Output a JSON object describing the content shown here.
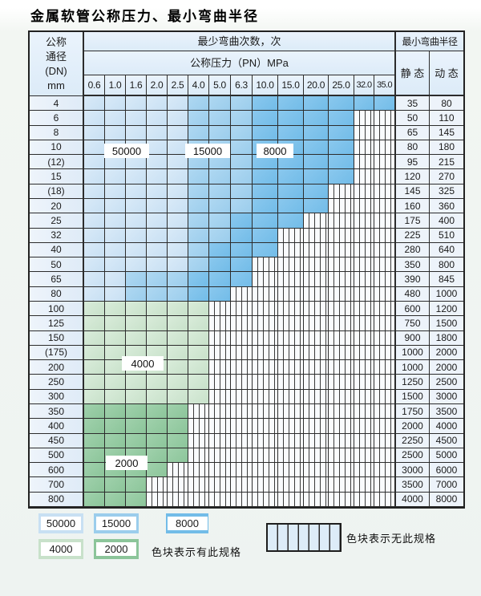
{
  "title": "金属软管公称压力、最小弯曲半径",
  "table": {
    "dn_header": [
      "公称",
      "通径",
      "(DN)",
      "mm"
    ],
    "bend_cycles_header": "最少弯曲次数，次",
    "pressure_header": "公称压力（PN）MPa",
    "radius_header": "最小弯曲半径",
    "static_header": "静 态",
    "dynamic_header": "动 态",
    "pressure_columns": [
      "0.6",
      "1.0",
      "1.6",
      "2.0",
      "2.5",
      "4.0",
      "5.0",
      "6.3",
      "10.0",
      "15.0",
      "20.0",
      "25.0",
      "32.0",
      "35.0"
    ],
    "cell_codes": {
      "A": "50000",
      "B": "15000",
      "C": "8000",
      "D": "4000",
      "E": "2000",
      "X": "无此规格"
    },
    "rows": [
      {
        "dn": "4",
        "cells": "AAAAABBBCCCCCC",
        "static": "35",
        "dynamic": "80"
      },
      {
        "dn": "6",
        "cells": "AAAAABBBCCCCXX",
        "static": "50",
        "dynamic": "110"
      },
      {
        "dn": "8",
        "cells": "AAAAABBBCCCCXX",
        "static": "65",
        "dynamic": "145"
      },
      {
        "dn": "10",
        "cells": "AAAAABBBCCCCXX",
        "static": "80",
        "dynamic": "180"
      },
      {
        "dn": "(12)",
        "cells": "AAAAABBBCCCCXX",
        "static": "95",
        "dynamic": "215"
      },
      {
        "dn": "15",
        "cells": "AAAAABBBCCCCXX",
        "static": "120",
        "dynamic": "270"
      },
      {
        "dn": "(18)",
        "cells": "AAAAABBBCCCXXX",
        "static": "145",
        "dynamic": "325"
      },
      {
        "dn": "20",
        "cells": "AAAAABBBCCCXXX",
        "static": "160",
        "dynamic": "360"
      },
      {
        "dn": "25",
        "cells": "AAAAABBCCCXXXX",
        "static": "175",
        "dynamic": "400"
      },
      {
        "dn": "32",
        "cells": "AAAAABBCCXXXXX",
        "static": "225",
        "dynamic": "510"
      },
      {
        "dn": "40",
        "cells": "AAAAABCCCXXXXX",
        "static": "280",
        "dynamic": "640"
      },
      {
        "dn": "50",
        "cells": "AAAAABCCXXXXXX",
        "static": "350",
        "dynamic": "800"
      },
      {
        "dn": "65",
        "cells": "AABBBCCCXXXXXX",
        "static": "390",
        "dynamic": "845"
      },
      {
        "dn": "80",
        "cells": "AABBBCCXXXXXXX",
        "static": "480",
        "dynamic": "1000"
      },
      {
        "dn": "100",
        "cells": "DDDDDDXXXXXXXX",
        "static": "600",
        "dynamic": "1200"
      },
      {
        "dn": "125",
        "cells": "DDDDDDXXXXXXXX",
        "static": "750",
        "dynamic": "1500"
      },
      {
        "dn": "150",
        "cells": "DDDDDDXXXXXXXX",
        "static": "900",
        "dynamic": "1800"
      },
      {
        "dn": "(175)",
        "cells": "DDDDDDXXXXXXXX",
        "static": "1000",
        "dynamic": "2000"
      },
      {
        "dn": "200",
        "cells": "DDDDDDXXXXXXXX",
        "static": "1000",
        "dynamic": "2000"
      },
      {
        "dn": "250",
        "cells": "DDDDDDXXXXXXXX",
        "static": "1250",
        "dynamic": "2500"
      },
      {
        "dn": "300",
        "cells": "DDDDDDXXXXXXXX",
        "static": "1500",
        "dynamic": "3000"
      },
      {
        "dn": "350",
        "cells": "EEEEEXXXXXXXXX",
        "static": "1750",
        "dynamic": "3500"
      },
      {
        "dn": "400",
        "cells": "EEEEEXXXXXXXXX",
        "static": "2000",
        "dynamic": "4000"
      },
      {
        "dn": "450",
        "cells": "EEEEEXXXXXXXXX",
        "static": "2250",
        "dynamic": "4500"
      },
      {
        "dn": "500",
        "cells": "EEEEEXXXXXXXXX",
        "static": "2500",
        "dynamic": "5000"
      },
      {
        "dn": "600",
        "cells": "EEEEXXXXXXXXXX",
        "static": "3000",
        "dynamic": "6000"
      },
      {
        "dn": "700",
        "cells": "EEEXXXXXXXXXXX",
        "static": "3500",
        "dynamic": "7000"
      },
      {
        "dn": "800",
        "cells": "EEEXXXXXXXXXXX",
        "static": "4000",
        "dynamic": "8000"
      }
    ]
  },
  "region_labels": {
    "r50000": "50000",
    "r15000": "15000",
    "r8000": "8000",
    "r4000": "4000",
    "r2000": "2000"
  },
  "legend": {
    "items": [
      {
        "value": "50000"
      },
      {
        "value": "15000"
      },
      {
        "value": "8000"
      },
      {
        "value": "4000"
      },
      {
        "value": "2000"
      }
    ],
    "has_spec_text": "色块表示有此规格",
    "no_spec_text": "色块表示无此规格"
  },
  "colors": {
    "c50000": "#c8e0f3",
    "c15000": "#9bcdec",
    "c8000": "#72bce8",
    "c4000": "#c8e1ca",
    "c2000": "#8cc59a",
    "grid_line": "#2c2c2c",
    "header_bg": "#e3effa"
  }
}
